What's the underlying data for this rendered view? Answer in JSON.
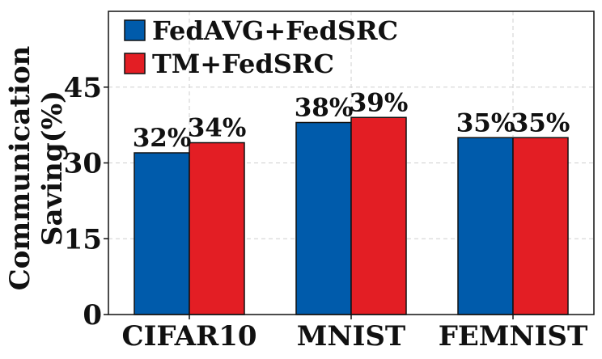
{
  "chart_data": {
    "type": "bar",
    "title": "",
    "xlabel": "",
    "ylabel_lines": [
      "Communication",
      "Saving(%)"
    ],
    "categories": [
      "CIFAR10",
      "MNIST",
      "FEMNIST"
    ],
    "series": [
      {
        "name": "FedAVG+FedSRC",
        "color": "#005bab",
        "values": [
          32,
          38,
          35
        ],
        "labels": [
          "32%",
          "38%",
          "35%"
        ]
      },
      {
        "name": "TM+FedSRC",
        "color": "#e31e24",
        "values": [
          34,
          39,
          35
        ],
        "labels": [
          "34%",
          "39%",
          "35%"
        ]
      }
    ],
    "ylim": [
      0,
      60
    ],
    "yticks": [
      0,
      15,
      30,
      45
    ],
    "grid": true,
    "legend_position": "top-left"
  }
}
